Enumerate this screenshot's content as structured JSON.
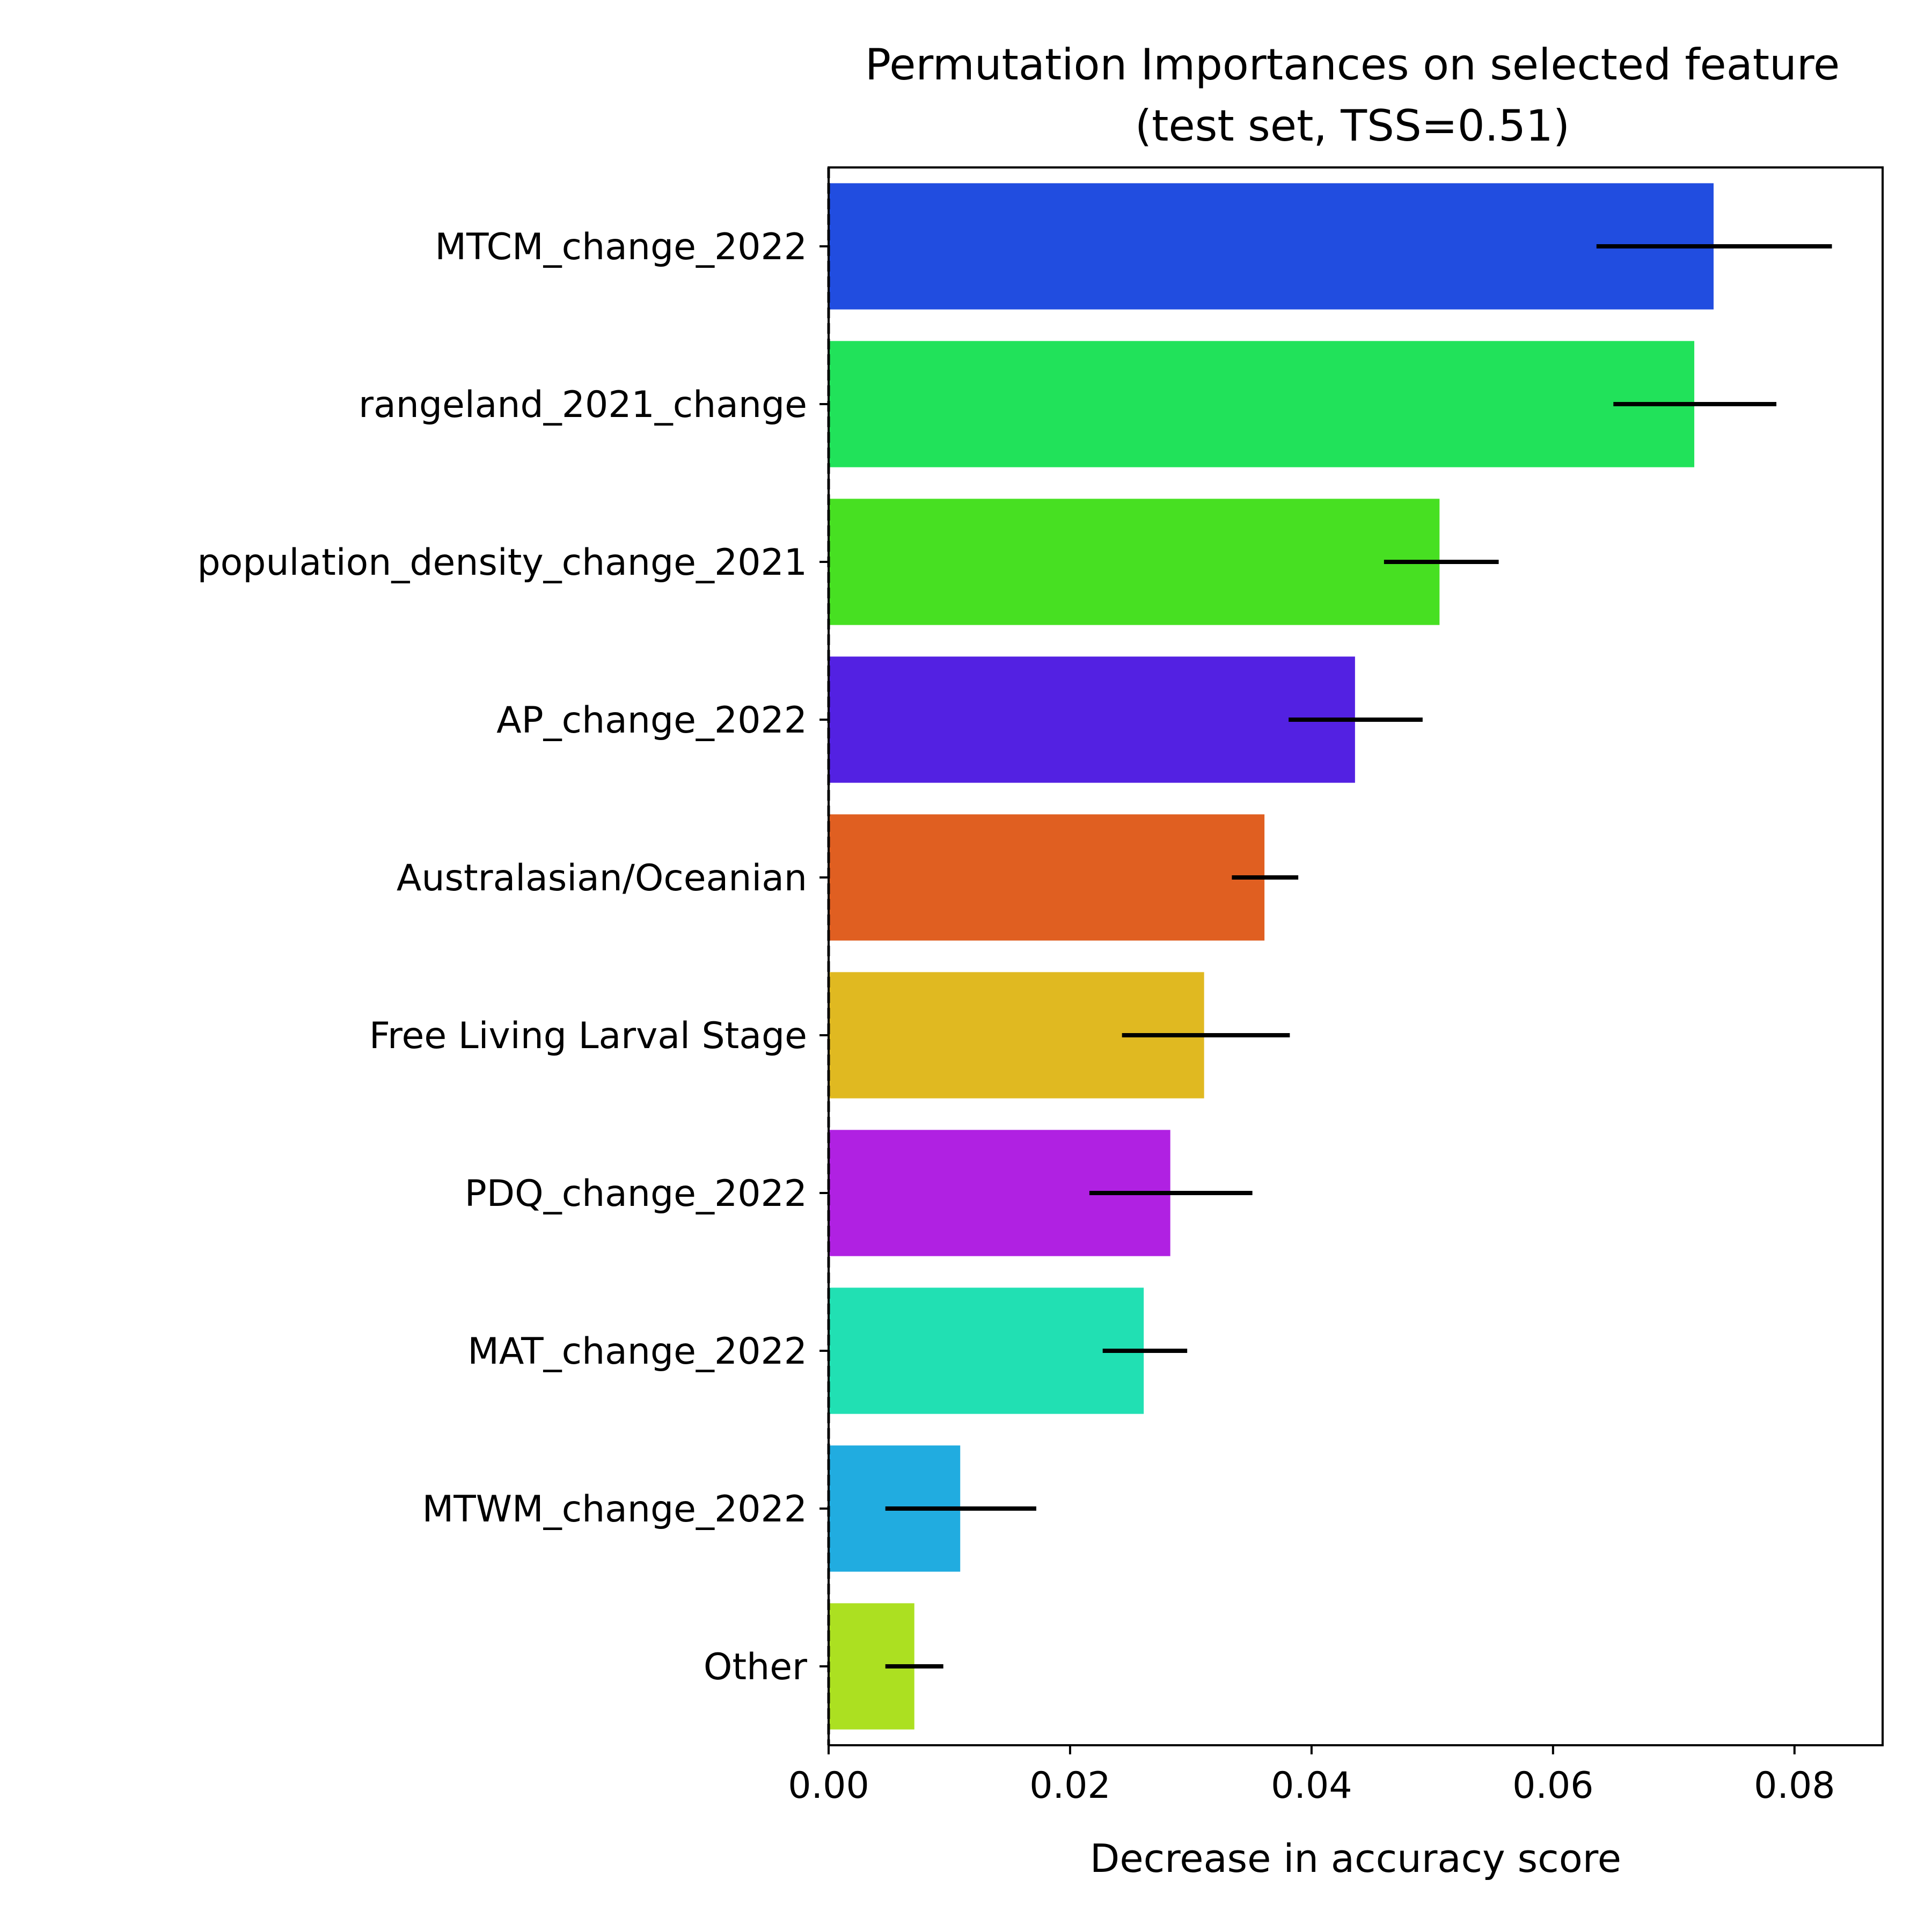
{
  "chart_data": {
    "type": "bar",
    "orientation": "horizontal",
    "title": "Permutation Importances on selected feature",
    "subtitle": "(test set, TSS=0.51)",
    "xlabel": "Decrease in accuracy score",
    "ylabel": "",
    "xlim": [
      0,
      0.0873
    ],
    "x_ticks": [
      "0.00",
      "0.02",
      "0.04",
      "0.06",
      "0.08"
    ],
    "x_tick_values": [
      0,
      0.02,
      0.04,
      0.06,
      0.08
    ],
    "grid": false,
    "legend": "none",
    "reference_line": {
      "x": 0,
      "style": "dashed"
    },
    "categories": [
      "MTCM_change_2022",
      "rangeland_2021_change",
      "population_density_change_2021",
      "AP_change_2022",
      "Australasian/Oceanian",
      "Free Living Larval Stage",
      "PDQ_change_2022",
      "MAT_change_2022",
      "MTWM_change_2022",
      "Other"
    ],
    "values": [
      0.0733,
      0.0717,
      0.0506,
      0.0436,
      0.0361,
      0.0311,
      0.0283,
      0.0261,
      0.0109,
      0.0071
    ],
    "error_intervals": [
      [
        0.0636,
        0.0831
      ],
      [
        0.065,
        0.0785
      ],
      [
        0.046,
        0.0555
      ],
      [
        0.0381,
        0.0492
      ],
      [
        0.0334,
        0.0389
      ],
      [
        0.0243,
        0.0382
      ],
      [
        0.0216,
        0.0351
      ],
      [
        0.0227,
        0.0297
      ],
      [
        0.0047,
        0.0172
      ],
      [
        0.0047,
        0.0095
      ]
    ],
    "colors": [
      "#214de0",
      "#21e25a",
      "#47e022",
      "#5321e2",
      "#e05f21",
      "#e0b921",
      "#b021e2",
      "#21e0b3",
      "#21ace0",
      "#ace021"
    ]
  }
}
